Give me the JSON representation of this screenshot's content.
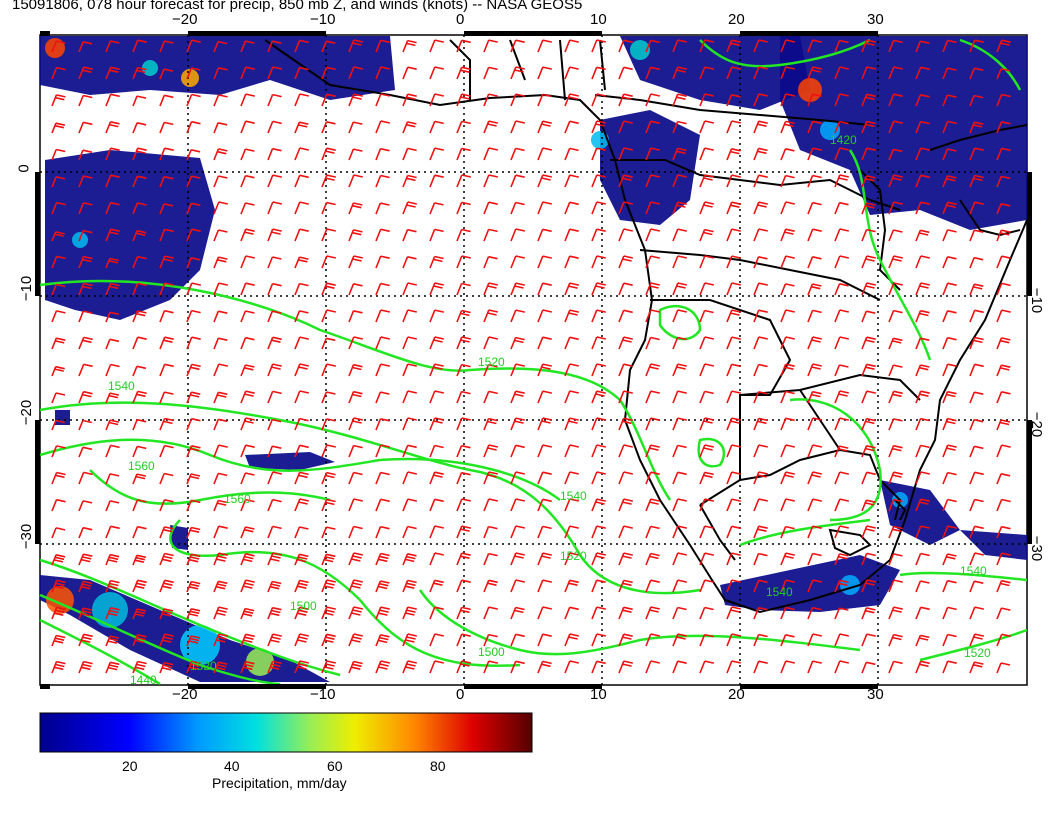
{
  "title": "15091806, 078 hour forecast for precip, 850 mb Z, and winds (knots) -- NASA GEOS5",
  "map": {
    "region": "Southern Africa and South Atlantic",
    "top_lon_labels": [
      "−20",
      "−10",
      "0",
      "10",
      "20",
      "30"
    ],
    "bottom_lon_labels": [
      "−20",
      "−10",
      "0",
      "10",
      "20",
      "30"
    ],
    "left_lat_labels": [
      "0",
      "−10",
      "−20",
      "−30"
    ],
    "right_lat_labels": [
      "−10",
      "−20",
      "−30"
    ],
    "contour_labels": [
      "1520",
      "1540",
      "1560",
      "1560",
      "1540",
      "1520",
      "1500",
      "1540",
      "1540",
      "1520",
      "1500",
      "1520",
      "1440",
      "1420"
    ],
    "colors": {
      "precip_low": "#00008b",
      "contour": "#22e622",
      "wind_barb": "#ee1111",
      "land_outline": "#000000"
    }
  },
  "colorbar": {
    "ticks": [
      "20",
      "40",
      "60",
      "80"
    ],
    "label": "Precipitation, mm/day"
  }
}
